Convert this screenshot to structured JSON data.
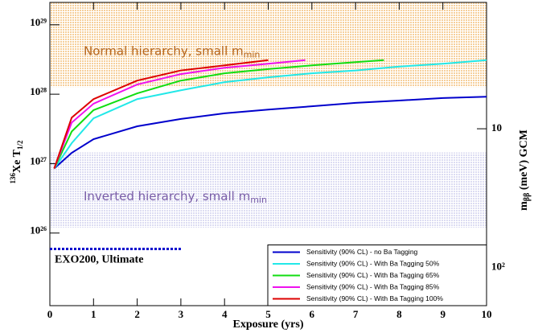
{
  "chart_data": {
    "type": "line",
    "x_label": "Exposure (yrs)",
    "y_label": [
      "136",
      "Xe T",
      "1/2"
    ],
    "y2_label": [
      "m",
      "ββ",
      " (meV) GCM"
    ],
    "xlim": [
      0,
      10
    ],
    "xticks": [
      0,
      1,
      2,
      3,
      4,
      5,
      6,
      7,
      8,
      9,
      10
    ],
    "ylim": [
      9e+24,
      2.1e+29
    ],
    "log_y": true,
    "yticks": [
      {
        "value": 1e+26,
        "label": "10²⁶"
      },
      {
        "value": 1e+27,
        "label": "10²⁷"
      },
      {
        "value": 1e+28,
        "label": "10²⁸"
      },
      {
        "value": 1e+29,
        "label": "10²⁹"
      }
    ],
    "y2lim": [
      188,
      1.23
    ],
    "log_y2": true,
    "y2ticks": [
      10,
      {
        "value": 100,
        "label": "10²"
      }
    ],
    "legend": "lower right",
    "bands": [
      {
        "text": "Normal hierarchy, small m",
        "subscript": "min",
        "range": [
          1.27e+28,
          2.1e+29
        ],
        "color": "#f6cf9a",
        "text_color": "#b5651d"
      },
      {
        "text": "Inverted hierarchy, small m",
        "subscript": "min",
        "range": [
          1.2e+26,
          1.45e+27
        ],
        "color": "#dcdcf2",
        "text_color": "#7a5ea8"
      }
    ],
    "reference": {
      "label": "EXO200, Ultimate",
      "x": [
        0,
        3
      ],
      "value": 5.9e+25,
      "color": "#0000cc"
    },
    "series": [
      {
        "name": "Sensitivity (90% CL) - no Ba Tagging",
        "color": "#0000cc",
        "x": [
          0.1,
          0.5,
          1,
          2,
          3,
          4,
          5,
          6,
          7,
          8,
          9,
          10
        ],
        "values": [
          8.5e+26,
          1.43e+27,
          2.25e+27,
          3.45e+27,
          4.4e+27,
          5.3e+27,
          6e+27,
          6.7e+27,
          7.5e+27,
          8.1e+27,
          8.8e+27,
          9.2e+27
        ]
      },
      {
        "name": "Sensitivity (90% CL) - With Ba Tagging 50%",
        "color": "#22e8e8",
        "x": [
          0.1,
          0.5,
          1,
          2,
          3,
          4,
          5,
          6,
          7,
          8,
          9,
          10
        ],
        "values": [
          8.5e+26,
          1.97e+27,
          4.5e+27,
          8.5e+27,
          1.14e+28,
          1.49e+28,
          1.75e+28,
          2e+28,
          2.2e+28,
          2.5e+28,
          2.75e+28,
          3.1e+28
        ]
      },
      {
        "name": "Sensitivity (90% CL) - With Ba Tagging 65%",
        "color": "#11dd11",
        "x": [
          0.1,
          0.5,
          1,
          2,
          3,
          4,
          5,
          6,
          7,
          7.65
        ],
        "values": [
          8.5e+26,
          2.9e+27,
          5.9e+27,
          1.03e+28,
          1.57e+28,
          2e+28,
          2.3e+28,
          2.6e+28,
          2.9e+28,
          3.1e+28
        ]
      },
      {
        "name": "Sensitivity (90% CL) - With Ba Tagging 85%",
        "color": "#ee11ee",
        "x": [
          0.1,
          0.5,
          1,
          2,
          3,
          4,
          5,
          5.85
        ],
        "values": [
          8.5e+26,
          3.9e+27,
          7.3e+27,
          1.38e+28,
          1.95e+28,
          2.4e+28,
          2.75e+28,
          3.1e+28
        ]
      },
      {
        "name": "Sensitivity (90% CL) - With Ba Tagging 100%",
        "color": "#dd0000",
        "x": [
          0.1,
          0.5,
          1,
          2,
          3,
          4,
          5
        ],
        "values": [
          8.5e+26,
          4.6e+27,
          8.5e+27,
          1.57e+28,
          2.2e+28,
          2.6e+28,
          3.1e+28
        ]
      }
    ]
  }
}
